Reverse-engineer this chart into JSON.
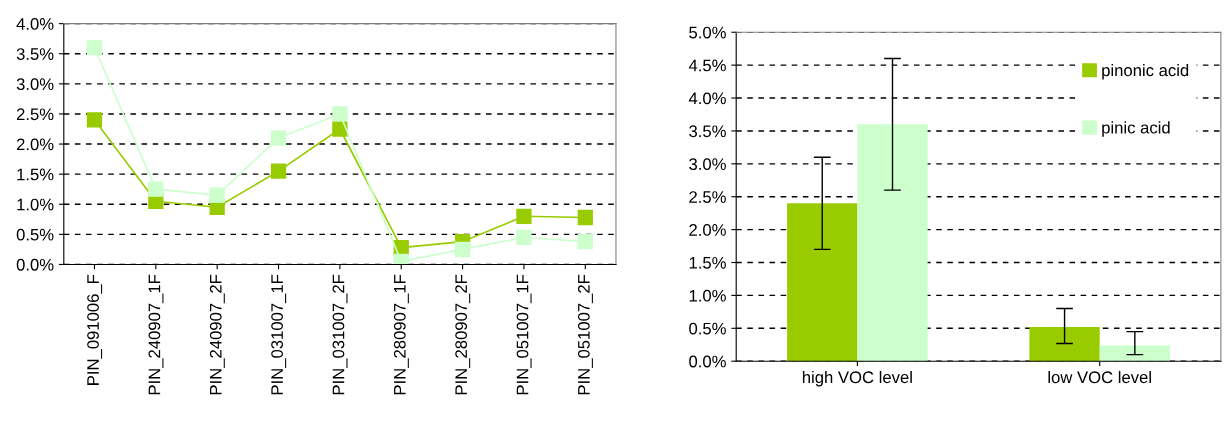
{
  "chart_data": [
    {
      "type": "line",
      "categories": [
        "PIN_091006_F",
        "PIN_240907_1F",
        "PIN_240907_2F",
        "PIN_031007_1F",
        "PIN_031007_2F",
        "PIN_280907_1F",
        "PIN_280907_2F",
        "PIN_051007_1F",
        "PIN_051007_2F"
      ],
      "series": [
        {
          "color": "#99cc00",
          "values": [
            2.4,
            1.05,
            0.95,
            1.55,
            2.25,
            0.28,
            0.38,
            0.8,
            0.78
          ]
        },
        {
          "color": "#ccffcc",
          "values": [
            3.6,
            1.25,
            1.15,
            2.1,
            2.5,
            0.05,
            0.25,
            0.45,
            0.38
          ]
        }
      ],
      "ylim": [
        0,
        4
      ],
      "yticks": [
        {
          "value": 0,
          "label": "0.0%"
        },
        {
          "value": 0.5,
          "label": "0.5%"
        },
        {
          "value": 1,
          "label": "1.0%"
        },
        {
          "value": 1.5,
          "label": "1.5%"
        },
        {
          "value": 2,
          "label": "2.0%"
        },
        {
          "value": 2.5,
          "label": "2.5%"
        },
        {
          "value": 3,
          "label": "3.0%"
        },
        {
          "value": 3.5,
          "label": "3.5%"
        },
        {
          "value": 4,
          "label": "4.0%"
        }
      ],
      "grid": "y",
      "marker": "square",
      "line_style": "solid",
      "legend": false
    },
    {
      "type": "bar",
      "categories": [
        "high VOC level",
        "low VOC level"
      ],
      "series": [
        {
          "name": "pinonic acid",
          "color": "#99cc00",
          "values": [
            2.4,
            0.52
          ],
          "errors": [
            [
              1.7,
              3.1
            ],
            [
              0.27,
              0.8
            ]
          ]
        },
        {
          "name": "pinic acid",
          "color": "#ccffcc",
          "values": [
            3.6,
            0.24
          ],
          "errors": [
            [
              2.6,
              4.6
            ],
            [
              0.1,
              0.45
            ]
          ]
        }
      ],
      "ylim": [
        0,
        5
      ],
      "yticks": [
        {
          "value": 0,
          "label": "0.0%"
        },
        {
          "value": 0.5,
          "label": "0.5%"
        },
        {
          "value": 1,
          "label": "1.0%"
        },
        {
          "value": 1.5,
          "label": "1.5%"
        },
        {
          "value": 2,
          "label": "2.0%"
        },
        {
          "value": 2.5,
          "label": "2.5%"
        },
        {
          "value": 3,
          "label": "3.0%"
        },
        {
          "value": 3.5,
          "label": "3.5%"
        },
        {
          "value": 4,
          "label": "4.0%"
        },
        {
          "value": 4.5,
          "label": "4.5%"
        },
        {
          "value": 5,
          "label": "5.0%"
        }
      ],
      "grid": "y",
      "legend": "top right"
    }
  ]
}
